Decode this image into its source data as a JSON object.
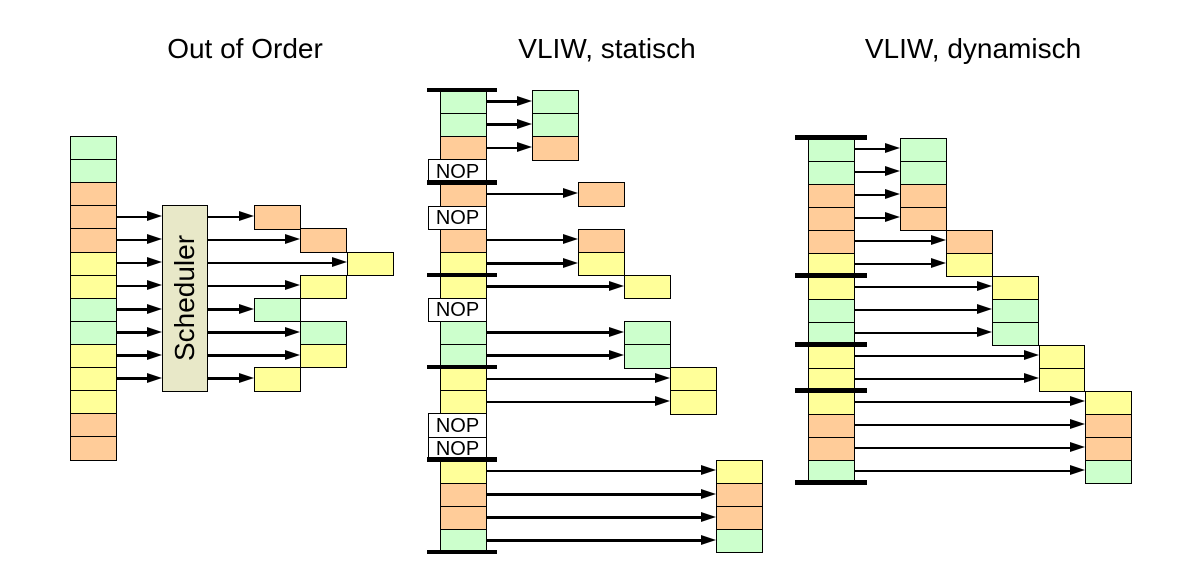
{
  "titles": {
    "out_of_order": "Out of Order",
    "vliw_static": "VLIW, statisch",
    "vliw_dynamic": "VLIW, dynamisch"
  },
  "labels": {
    "scheduler": "Scheduler",
    "nop": "NOP"
  },
  "colors": {
    "green": "#CCFFCC",
    "orange": "#FFCC99",
    "yellow": "#FFFF99",
    "scheduler_fill": "#E8E8C8",
    "nop_fill": "#FFFFFF",
    "line": "#000000",
    "background": "#FFFFFF"
  },
  "out_of_order": {
    "instruction_stack": [
      "green",
      "green",
      "orange",
      "orange",
      "orange",
      "yellow",
      "yellow",
      "green",
      "green",
      "yellow",
      "yellow",
      "yellow",
      "orange",
      "orange"
    ],
    "scheduled_instructions": [
      {
        "source_row": 4,
        "issue_column": 1
      },
      {
        "source_row": 5,
        "issue_column": 2
      },
      {
        "source_row": 6,
        "issue_column": 3
      },
      {
        "source_row": 7,
        "issue_column": 2
      },
      {
        "source_row": 8,
        "issue_column": 1
      },
      {
        "source_row": 9,
        "issue_column": 2
      },
      {
        "source_row": 10,
        "issue_column": 2
      },
      {
        "source_row": 11,
        "issue_column": 1
      }
    ]
  },
  "vliw_static": {
    "word_size": 4,
    "instruction_stack": [
      "green",
      "green",
      "orange",
      "NOP",
      "orange",
      "NOP",
      "orange",
      "yellow",
      "yellow",
      "NOP",
      "green",
      "green",
      "yellow",
      "yellow",
      "NOP",
      "NOP",
      "yellow",
      "orange",
      "orange",
      "green"
    ]
  },
  "vliw_dynamic": {
    "instruction_stack": [
      "green",
      "green",
      "orange",
      "orange",
      "orange",
      "yellow",
      "yellow",
      "green",
      "green",
      "yellow",
      "yellow",
      "yellow",
      "orange",
      "orange",
      "green"
    ],
    "issue_groups": [
      4,
      2,
      3,
      2,
      4
    ],
    "fetch_dividers_after_row": [
      6,
      9,
      11
    ]
  }
}
